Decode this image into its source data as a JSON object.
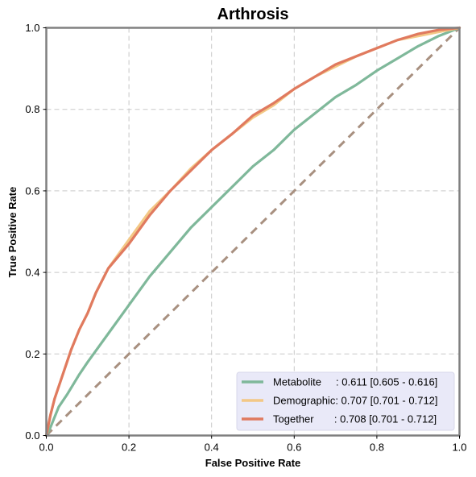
{
  "chart_data": {
    "type": "line",
    "title": "Arthrosis",
    "xlabel": "False Positive Rate",
    "ylabel": "True Positive Rate",
    "xlim": [
      0,
      1
    ],
    "ylim": [
      0,
      1
    ],
    "x_ticks": [
      "0.0",
      "0.2",
      "0.4",
      "0.6",
      "0.8",
      "1.0"
    ],
    "y_ticks": [
      "0.0",
      "0.2",
      "0.4",
      "0.6",
      "0.8",
      "1.0"
    ],
    "grid": true,
    "legend_position": "lower-right",
    "legend_background": "#e9e9f8",
    "series": [
      {
        "name": "Metabolite",
        "legend_label": "Metabolite     : 0.611 [0.605 - 0.616]",
        "color": "#7fb89a",
        "x": [
          0,
          0.01,
          0.03,
          0.05,
          0.08,
          0.1,
          0.15,
          0.2,
          0.25,
          0.3,
          0.35,
          0.4,
          0.45,
          0.5,
          0.55,
          0.6,
          0.65,
          0.7,
          0.75,
          0.8,
          0.85,
          0.9,
          0.95,
          1.0
        ],
        "y": [
          0,
          0.02,
          0.07,
          0.1,
          0.15,
          0.18,
          0.25,
          0.32,
          0.39,
          0.45,
          0.51,
          0.56,
          0.61,
          0.66,
          0.7,
          0.75,
          0.79,
          0.83,
          0.86,
          0.895,
          0.925,
          0.955,
          0.98,
          1.0
        ]
      },
      {
        "name": "Demographic",
        "legend_label": "Demographic: 0.707 [0.701 - 0.712]",
        "color": "#f3c886",
        "x": [
          0,
          0.01,
          0.02,
          0.04,
          0.06,
          0.08,
          0.1,
          0.12,
          0.15,
          0.2,
          0.25,
          0.3,
          0.35,
          0.4,
          0.45,
          0.5,
          0.55,
          0.6,
          0.65,
          0.7,
          0.75,
          0.8,
          0.85,
          0.9,
          0.95,
          1.0
        ],
        "y": [
          0,
          0.05,
          0.09,
          0.15,
          0.21,
          0.26,
          0.3,
          0.35,
          0.41,
          0.48,
          0.55,
          0.6,
          0.655,
          0.7,
          0.74,
          0.78,
          0.81,
          0.85,
          0.88,
          0.905,
          0.93,
          0.95,
          0.97,
          0.98,
          0.99,
          1.0
        ]
      },
      {
        "name": "Together",
        "legend_label": "Together       : 0.708 [0.701 - 0.712]",
        "color": "#e07a5f",
        "x": [
          0,
          0.01,
          0.02,
          0.04,
          0.06,
          0.08,
          0.1,
          0.12,
          0.15,
          0.2,
          0.25,
          0.3,
          0.35,
          0.4,
          0.45,
          0.5,
          0.55,
          0.6,
          0.65,
          0.7,
          0.75,
          0.8,
          0.85,
          0.9,
          0.95,
          1.0
        ],
        "y": [
          0,
          0.05,
          0.09,
          0.15,
          0.21,
          0.26,
          0.3,
          0.35,
          0.41,
          0.47,
          0.54,
          0.6,
          0.65,
          0.7,
          0.74,
          0.785,
          0.815,
          0.85,
          0.88,
          0.91,
          0.93,
          0.95,
          0.97,
          0.985,
          0.995,
          1.0
        ]
      }
    ],
    "reference_line": {
      "color": "#a89080",
      "x": [
        0,
        1
      ],
      "y": [
        0,
        1
      ]
    }
  }
}
